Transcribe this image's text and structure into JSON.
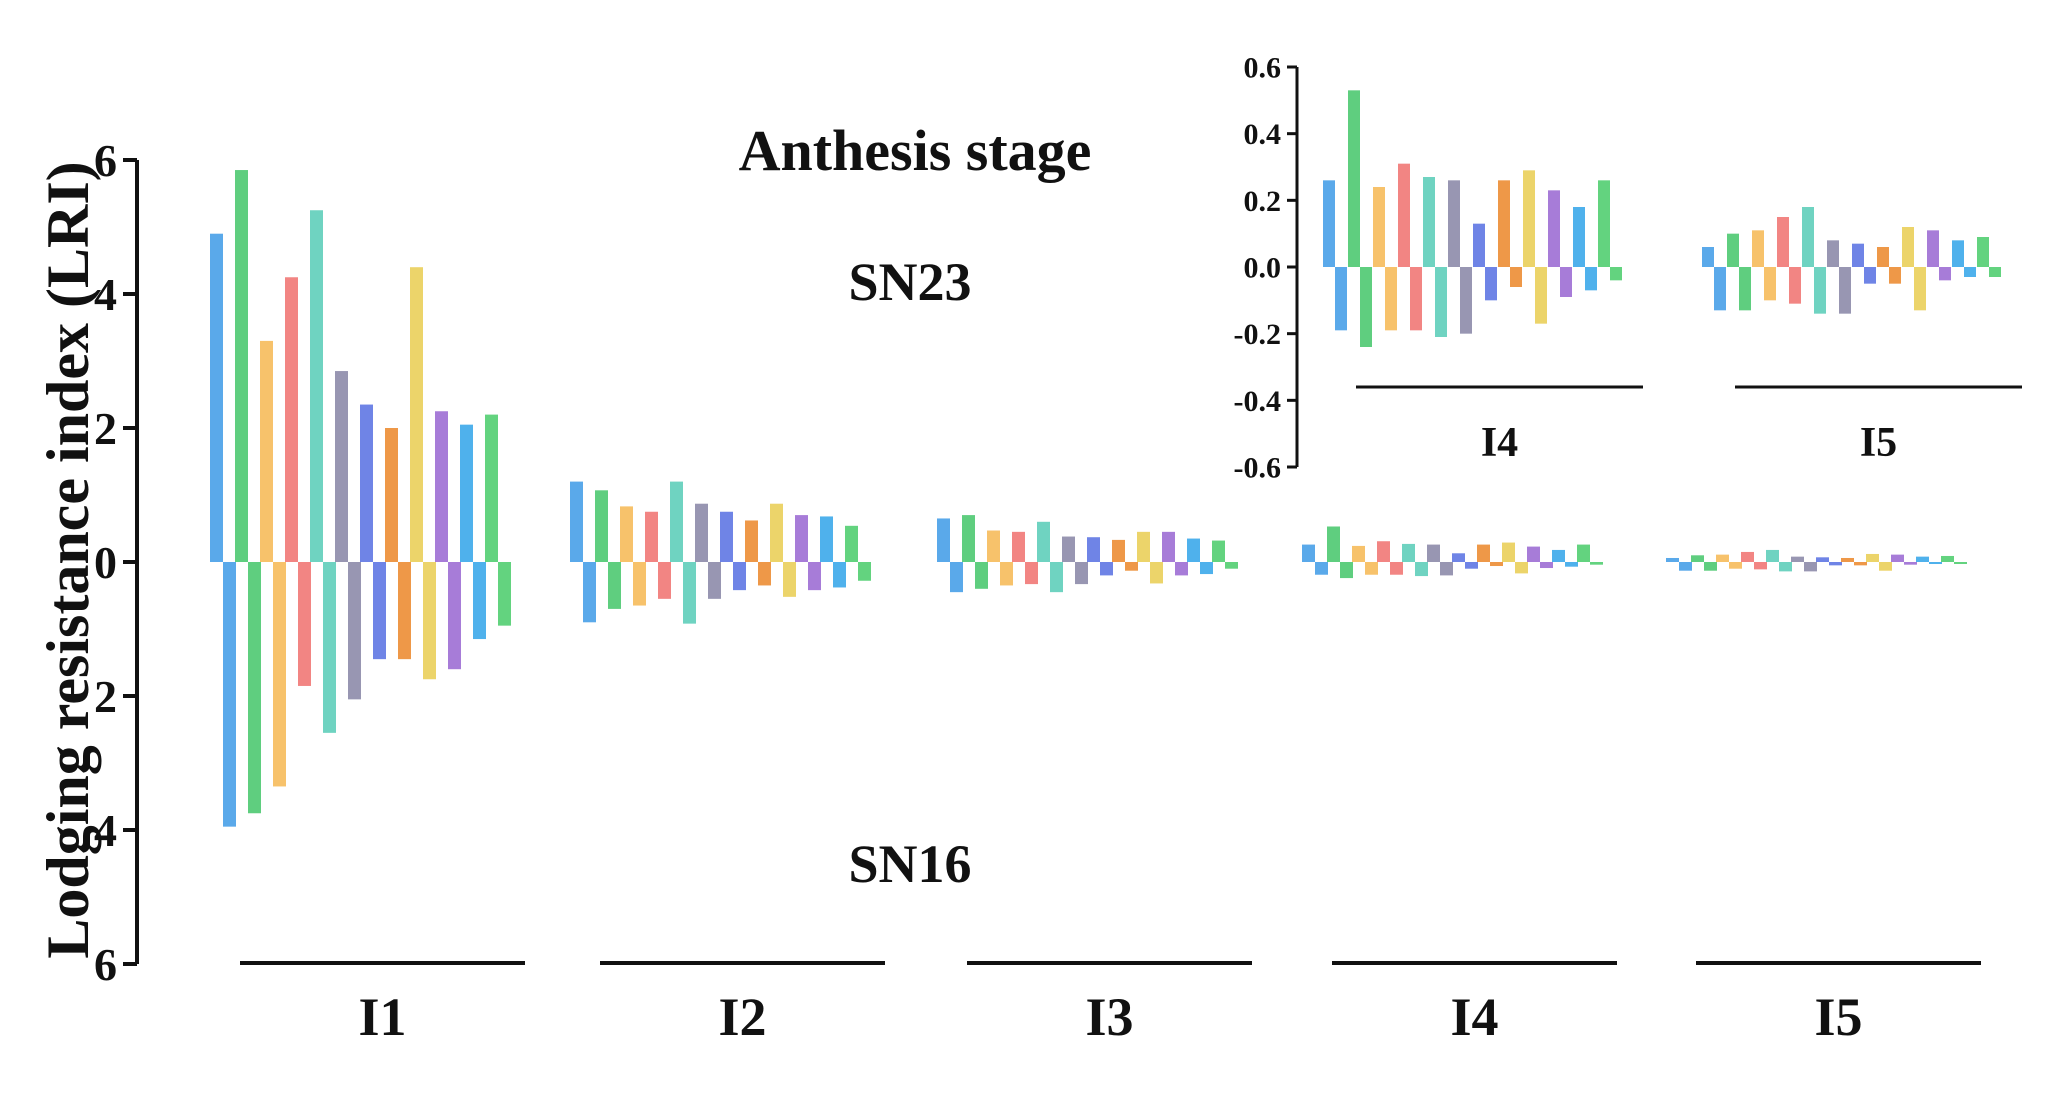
{
  "chart_data": [
    {
      "type": "bar",
      "title": "Anthesis stage",
      "ylabel": "Lodging resistance index (LRI)",
      "xlabel": "",
      "ylim": [
        -6,
        6
      ],
      "y_ticks": [
        6,
        4,
        2,
        0,
        -2,
        -4,
        -6
      ],
      "y_tick_labels": [
        "6",
        "4",
        "2",
        "0",
        "2",
        "4",
        "6"
      ],
      "annotations": {
        "upper": "SN23",
        "lower": "SN16"
      },
      "groups": [
        "I1",
        "I2",
        "I3",
        "I4",
        "I5"
      ],
      "legend": "none",
      "grid": false,
      "series_colors": [
        "#5aa9ea",
        "#5fce7f",
        "#f7c26b",
        "#f28583",
        "#6fd3c1",
        "#9896b2",
        "#6f84e6",
        "#ee9848",
        "#ecd46a",
        "#a77cd8",
        "#4fb1ec",
        "#63d37f"
      ],
      "upper_values": [
        [
          4.9,
          5.85,
          3.3,
          4.25,
          5.25,
          2.85,
          2.35,
          2.0,
          4.4,
          2.25,
          2.05,
          2.2
        ],
        [
          1.2,
          1.07,
          0.83,
          0.75,
          1.2,
          0.87,
          0.75,
          0.62,
          0.87,
          0.7,
          0.68,
          0.54
        ],
        [
          0.65,
          0.7,
          0.47,
          0.45,
          0.6,
          0.38,
          0.37,
          0.33,
          0.45,
          0.45,
          0.35,
          0.32
        ],
        [
          0.26,
          0.53,
          0.24,
          0.31,
          0.27,
          0.26,
          0.13,
          0.26,
          0.29,
          0.23,
          0.18,
          0.26
        ],
        [
          0.06,
          0.1,
          0.11,
          0.15,
          0.18,
          0.08,
          0.07,
          0.06,
          0.12,
          0.11,
          0.08,
          0.09
        ]
      ],
      "lower_values": [
        [
          -3.95,
          -3.75,
          -3.35,
          -1.85,
          -2.55,
          -2.05,
          -1.45,
          -1.45,
          -1.75,
          -1.6,
          -1.15,
          -0.95
        ],
        [
          -0.9,
          -0.7,
          -0.65,
          -0.55,
          -0.92,
          -0.55,
          -0.42,
          -0.35,
          -0.52,
          -0.42,
          -0.38,
          -0.28
        ],
        [
          -0.45,
          -0.4,
          -0.35,
          -0.33,
          -0.45,
          -0.33,
          -0.2,
          -0.13,
          -0.32,
          -0.2,
          -0.18,
          -0.1
        ],
        [
          -0.19,
          -0.24,
          -0.19,
          -0.19,
          -0.21,
          -0.2,
          -0.1,
          -0.06,
          -0.17,
          -0.09,
          -0.07,
          -0.04
        ],
        [
          -0.13,
          -0.13,
          -0.1,
          -0.11,
          -0.14,
          -0.14,
          -0.05,
          -0.05,
          -0.13,
          -0.04,
          -0.03,
          -0.03
        ]
      ]
    },
    {
      "type": "bar",
      "title": "",
      "ylim": [
        -0.6,
        0.6
      ],
      "y_ticks": [
        0.6,
        0.4,
        0.2,
        0.0,
        -0.2,
        -0.4,
        -0.6
      ],
      "y_tick_labels": [
        "0.6",
        "0.4",
        "0.2",
        "0.0",
        "-0.2",
        "-0.4",
        "-0.6"
      ],
      "groups": [
        "I4",
        "I5"
      ],
      "series_colors": [
        "#5aa9ea",
        "#5fce7f",
        "#f7c26b",
        "#f28583",
        "#6fd3c1",
        "#9896b2",
        "#6f84e6",
        "#ee9848",
        "#ecd46a",
        "#a77cd8",
        "#4fb1ec",
        "#63d37f"
      ],
      "upper_values": [
        [
          0.26,
          0.53,
          0.24,
          0.31,
          0.27,
          0.26,
          0.13,
          0.26,
          0.29,
          0.23,
          0.18,
          0.26
        ],
        [
          0.06,
          0.1,
          0.11,
          0.15,
          0.18,
          0.08,
          0.07,
          0.06,
          0.12,
          0.11,
          0.08,
          0.09
        ]
      ],
      "lower_values": [
        [
          -0.19,
          -0.24,
          -0.19,
          -0.19,
          -0.21,
          -0.2,
          -0.1,
          -0.06,
          -0.17,
          -0.09,
          -0.07,
          -0.04
        ],
        [
          -0.13,
          -0.13,
          -0.1,
          -0.11,
          -0.14,
          -0.14,
          -0.05,
          -0.05,
          -0.13,
          -0.04,
          -0.03,
          -0.03
        ]
      ]
    }
  ]
}
